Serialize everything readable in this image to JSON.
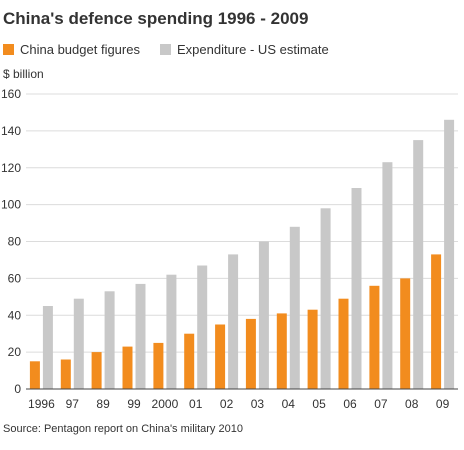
{
  "chart_data": {
    "type": "bar",
    "title": "China's defence spending 1996 - 2009",
    "unit_label": "$ billion",
    "ylim": [
      0,
      160
    ],
    "yticks": [
      0,
      20,
      40,
      60,
      80,
      100,
      120,
      140,
      160
    ],
    "grid": true,
    "legend_position": "top-left",
    "categories": [
      "1996",
      "97",
      "89",
      "99",
      "2000",
      "01",
      "02",
      "03",
      "04",
      "05",
      "06",
      "07",
      "08",
      "09"
    ],
    "series": [
      {
        "name": "China budget figures",
        "color": "#f28c1e",
        "values": [
          15,
          16,
          20,
          23,
          25,
          30,
          35,
          38,
          41,
          43,
          49,
          56,
          60,
          73
        ]
      },
      {
        "name": "Expenditure - US estimate",
        "color": "#c8c8c8",
        "values": [
          45,
          49,
          53,
          57,
          62,
          67,
          73,
          80,
          88,
          98,
          109,
          123,
          135,
          146
        ]
      }
    ],
    "source": "Source: Pentagon report on China's military 2010"
  }
}
